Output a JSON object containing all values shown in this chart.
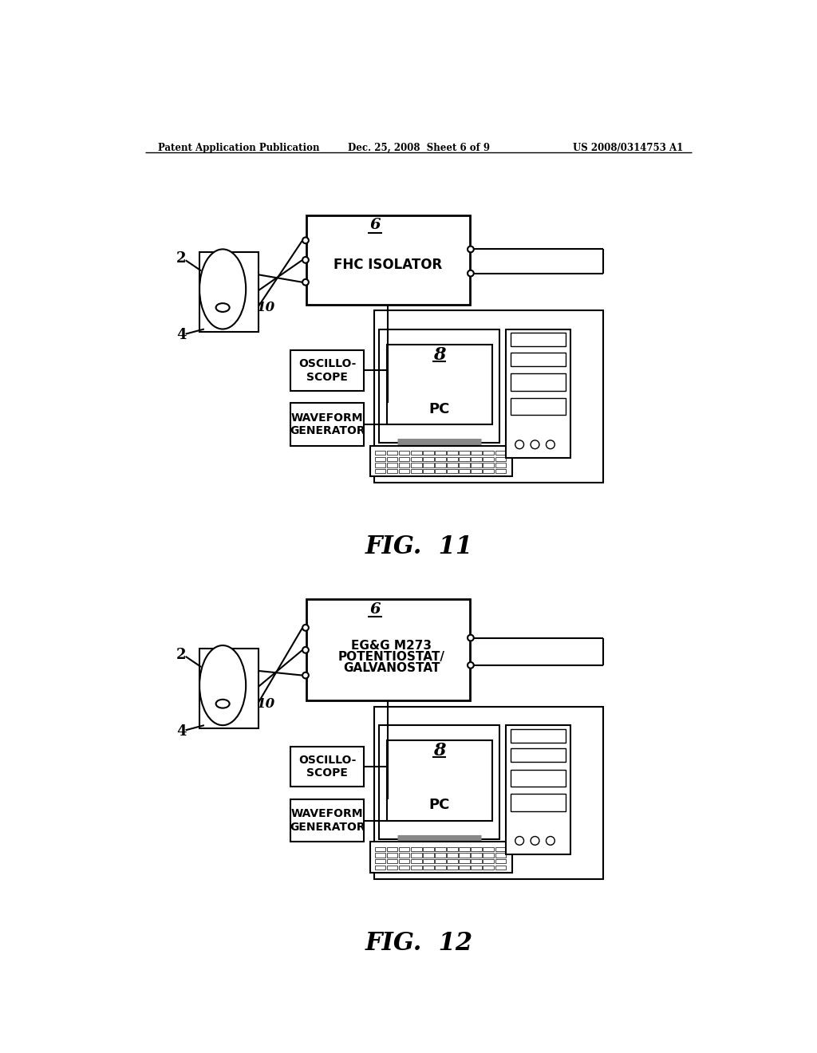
{
  "bg_color": "#ffffff",
  "header_left": "Patent Application Publication",
  "header_center": "Dec. 25, 2008  Sheet 6 of 9",
  "header_right": "US 2008/0314753 A1",
  "fig1_caption": "FIG.  11",
  "fig2_caption": "FIG.  12",
  "fig1_box_label": "6",
  "fig1_box_text": "FHC ISOLATOR",
  "fig2_box_label": "6",
  "fig2_box_text1": "EG&G M273",
  "fig2_box_text2": "POTENTIOSTAT/",
  "fig2_box_text3": "GALVANOSTAT",
  "oscilloscope_text": "OSCILLO-\nSCOPE",
  "waveform_text": "WAVEFORM\nGENERATOR",
  "pc_label": "8",
  "pc_text": "PC",
  "electrode_label_2": "2",
  "electrode_label_4": "4",
  "electrode_label_10": "10"
}
